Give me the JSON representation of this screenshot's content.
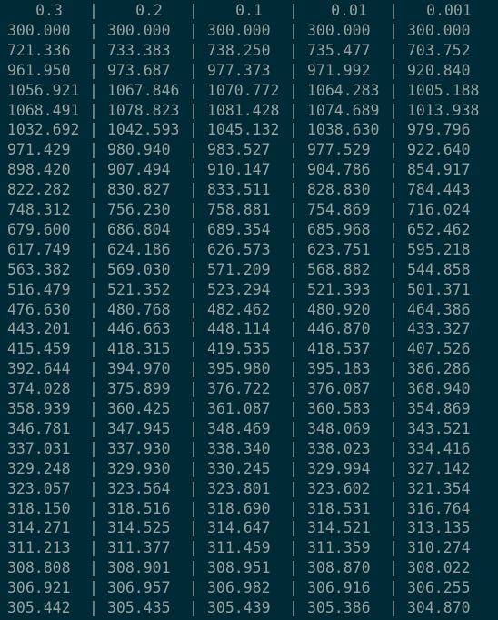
{
  "terminal": {
    "separator": "|",
    "colors": {
      "background": "#002b36",
      "text": "#93a1a1"
    },
    "headers": [
      "0.3",
      "0.2",
      "0.1",
      "0.01",
      "0.001"
    ],
    "rows": [
      [
        "300.000",
        "300.000",
        "300.000",
        "300.000",
        "300.000"
      ],
      [
        "721.336",
        "733.383",
        "738.250",
        "735.477",
        "703.752"
      ],
      [
        "961.950",
        "973.687",
        "977.373",
        "971.992",
        "920.840"
      ],
      [
        "1056.921",
        "1067.846",
        "1070.772",
        "1064.283",
        "1005.188"
      ],
      [
        "1068.491",
        "1078.823",
        "1081.428",
        "1074.689",
        "1013.938"
      ],
      [
        "1032.692",
        "1042.593",
        "1045.132",
        "1038.630",
        "979.796"
      ],
      [
        "971.429",
        "980.940",
        "983.527",
        "977.529",
        "922.640"
      ],
      [
        "898.420",
        "907.494",
        "910.147",
        "904.786",
        "854.917"
      ],
      [
        "822.282",
        "830.827",
        "833.511",
        "828.830",
        "784.443"
      ],
      [
        "748.312",
        "756.230",
        "758.881",
        "754.869",
        "716.024"
      ],
      [
        "679.600",
        "686.804",
        "689.354",
        "685.968",
        "652.462"
      ],
      [
        "617.749",
        "624.186",
        "626.573",
        "623.751",
        "595.218"
      ],
      [
        "563.382",
        "569.030",
        "571.209",
        "568.882",
        "544.858"
      ],
      [
        "516.479",
        "521.352",
        "523.294",
        "521.393",
        "501.371"
      ],
      [
        "476.630",
        "480.768",
        "482.462",
        "480.920",
        "464.386"
      ],
      [
        "443.201",
        "446.663",
        "448.114",
        "446.870",
        "433.327"
      ],
      [
        "415.459",
        "418.315",
        "419.535",
        "418.537",
        "407.526"
      ],
      [
        "392.644",
        "394.970",
        "395.980",
        "395.183",
        "386.286"
      ],
      [
        "374.028",
        "375.899",
        "376.722",
        "376.087",
        "368.940"
      ],
      [
        "358.939",
        "360.425",
        "361.087",
        "360.583",
        "354.869"
      ],
      [
        "346.781",
        "347.945",
        "348.469",
        "348.069",
        "343.521"
      ],
      [
        "337.031",
        "337.930",
        "338.340",
        "338.023",
        "334.416"
      ],
      [
        "329.248",
        "329.930",
        "330.245",
        "329.994",
        "327.142"
      ],
      [
        "323.057",
        "323.564",
        "323.801",
        "323.602",
        "321.354"
      ],
      [
        "318.150",
        "318.516",
        "318.690",
        "318.531",
        "316.764"
      ],
      [
        "314.271",
        "314.525",
        "314.647",
        "314.521",
        "313.135"
      ],
      [
        "311.213",
        "311.377",
        "311.459",
        "311.359",
        "310.274"
      ],
      [
        "308.808",
        "308.901",
        "308.951",
        "308.870",
        "308.022"
      ],
      [
        "306.921",
        "306.957",
        "306.982",
        "306.916",
        "306.255"
      ],
      [
        "305.442",
        "305.435",
        "305.439",
        "305.386",
        "304.870"
      ]
    ]
  }
}
